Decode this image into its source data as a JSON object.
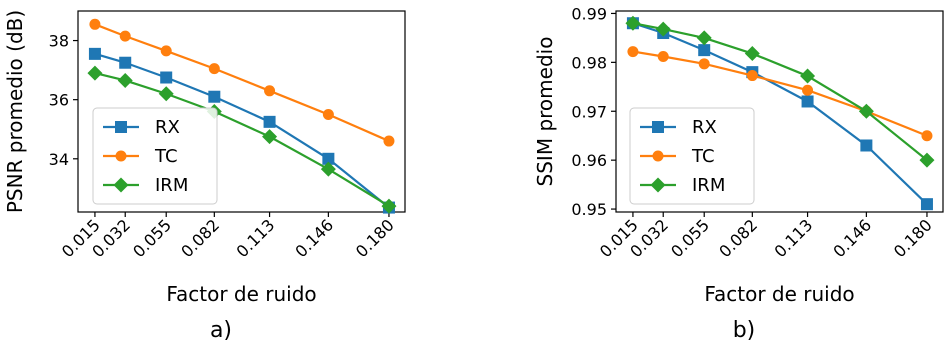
{
  "chart_data": [
    {
      "type": "line",
      "panel_label": "a)",
      "title": "",
      "xlabel": "Factor de ruido",
      "ylabel": "PSNR promedio (dB)",
      "x": [
        0.015,
        0.032,
        0.055,
        0.082,
        0.113,
        0.146,
        0.18
      ],
      "x_tick_labels": [
        "0.015",
        "0.032",
        "0.055",
        "0.082",
        "0.113",
        "0.146",
        "0.180"
      ],
      "xlim": [
        0.0055,
        0.189
      ],
      "ylim": [
        32.2,
        39.0
      ],
      "yticks": [
        34,
        36,
        38
      ],
      "y_tick_labels": [
        "34",
        "36",
        "38"
      ],
      "grid": false,
      "legend": "center-left",
      "series": [
        {
          "name": "RX",
          "color": "#1f77b4",
          "marker": "square",
          "values": [
            37.55,
            37.25,
            36.75,
            36.1,
            35.25,
            34.0,
            32.35
          ]
        },
        {
          "name": "TC",
          "color": "#ff7f0e",
          "marker": "circle",
          "values": [
            38.55,
            38.15,
            37.65,
            37.05,
            36.3,
            35.5,
            34.6
          ]
        },
        {
          "name": "IRM",
          "color": "#2ca02c",
          "marker": "diamond",
          "values": [
            36.9,
            36.65,
            36.2,
            35.6,
            34.75,
            33.65,
            32.4
          ]
        }
      ]
    },
    {
      "type": "line",
      "panel_label": "b)",
      "title": "",
      "xlabel": "Factor de ruido",
      "ylabel": "SSIM promedio",
      "x": [
        0.015,
        0.032,
        0.055,
        0.082,
        0.113,
        0.146,
        0.18
      ],
      "x_tick_labels": [
        "0.015",
        "0.032",
        "0.055",
        "0.082",
        "0.113",
        "0.146",
        "0.180"
      ],
      "xlim": [
        0.0055,
        0.189
      ],
      "ylim": [
        0.9494,
        0.9905
      ],
      "yticks": [
        0.95,
        0.96,
        0.97,
        0.98,
        0.99
      ],
      "y_tick_labels": [
        "0.95",
        "0.96",
        "0.97",
        "0.98",
        "0.99"
      ],
      "grid": false,
      "legend": "lower-left",
      "series": [
        {
          "name": "RX",
          "color": "#1f77b4",
          "marker": "square",
          "values": [
            0.988,
            0.986,
            0.9825,
            0.978,
            0.972,
            0.963,
            0.951
          ]
        },
        {
          "name": "TC",
          "color": "#ff7f0e",
          "marker": "circle",
          "values": [
            0.9822,
            0.9812,
            0.9797,
            0.9773,
            0.9743,
            0.97,
            0.965
          ]
        },
        {
          "name": "IRM",
          "color": "#2ca02c",
          "marker": "diamond",
          "values": [
            0.988,
            0.9868,
            0.985,
            0.9818,
            0.9772,
            0.97,
            0.96
          ]
        }
      ]
    }
  ]
}
